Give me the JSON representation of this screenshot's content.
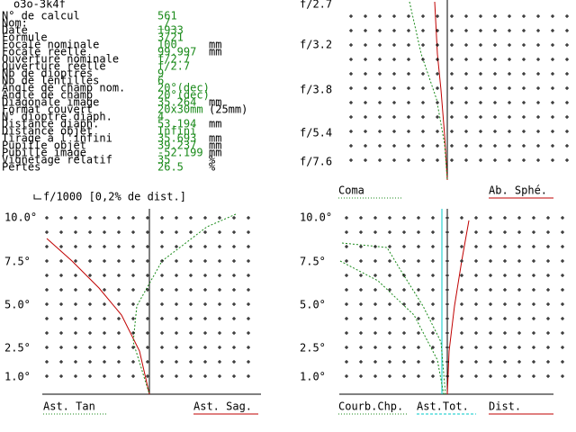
{
  "header": {
    "title": "o3o-3k4f"
  },
  "info": {
    "rows": [
      {
        "label": "N° de calcul",
        "value": "561"
      },
      {
        "label": "Nom:",
        "value": "_/_"
      },
      {
        "label": "Date",
        "value": "1933"
      },
      {
        "label": "Formule",
        "value": "3/21"
      },
      {
        "label": "Focale nominale",
        "value": "100",
        "unit": "mm"
      },
      {
        "label": "Focale réelle",
        "value": "99.997",
        "unit": "mm"
      },
      {
        "label": "Ouverture nominale",
        "value": "f/2.7"
      },
      {
        "label": "Ouverture réelle",
        "value": "f/2.7"
      },
      {
        "label": "Nb de dioptres",
        "value": "9"
      },
      {
        "label": "Nb de lentilles",
        "value": "6"
      },
      {
        "label": "Angle de champ nom.",
        "value": "20°(dec)"
      },
      {
        "label": "Angle de champ",
        "value": "20°(dec)"
      },
      {
        "label": "Diagonale image",
        "value": "35.264",
        "unit": "mm"
      },
      {
        "label": "Format couvert",
        "value": "20x30mm",
        "unit": "(25mm)"
      },
      {
        "label": "N° dioptre diaph.",
        "value": "4"
      },
      {
        "label": "Distance diaph.",
        "value": "53.194",
        "unit": "mm"
      },
      {
        "label": "Distance objet",
        "value": "Infini"
      },
      {
        "label": "Tirage à l'infini",
        "value": "35.693",
        "unit": "mm"
      },
      {
        "label": "Pupille objet",
        "value": "39.237",
        "unit": "mm"
      },
      {
        "label": "Pupille image",
        "value": "-52.199",
        "unit": "mm"
      },
      {
        "label": "Vignetage relatif",
        "value": "35",
        "unit": "%"
      },
      {
        "label": "Pertes",
        "value": "26.5",
        "unit": "%"
      }
    ]
  },
  "panels": [
    {
      "y_labels": [
        "f/2.7",
        "f/3.2",
        "f/3.8",
        "f/5.4",
        "f/7.6"
      ],
      "legend": [
        "Coma",
        "Ab. Sphé."
      ]
    },
    {
      "title": "f/1000 [0,2% de dist.]",
      "y_labels": [
        "10.0°",
        "7.5°",
        "5.0°",
        "2.5°",
        "1.0°"
      ],
      "legend": [
        "Ast. Tan",
        "Ast. Sag."
      ]
    },
    {
      "y_labels": [
        "10.0°",
        "7.5°",
        "5.0°",
        "2.5°",
        "1.0°"
      ],
      "legend": [
        "Courb.Chp.",
        "Ast.Tot.",
        "Dist."
      ]
    }
  ]
}
